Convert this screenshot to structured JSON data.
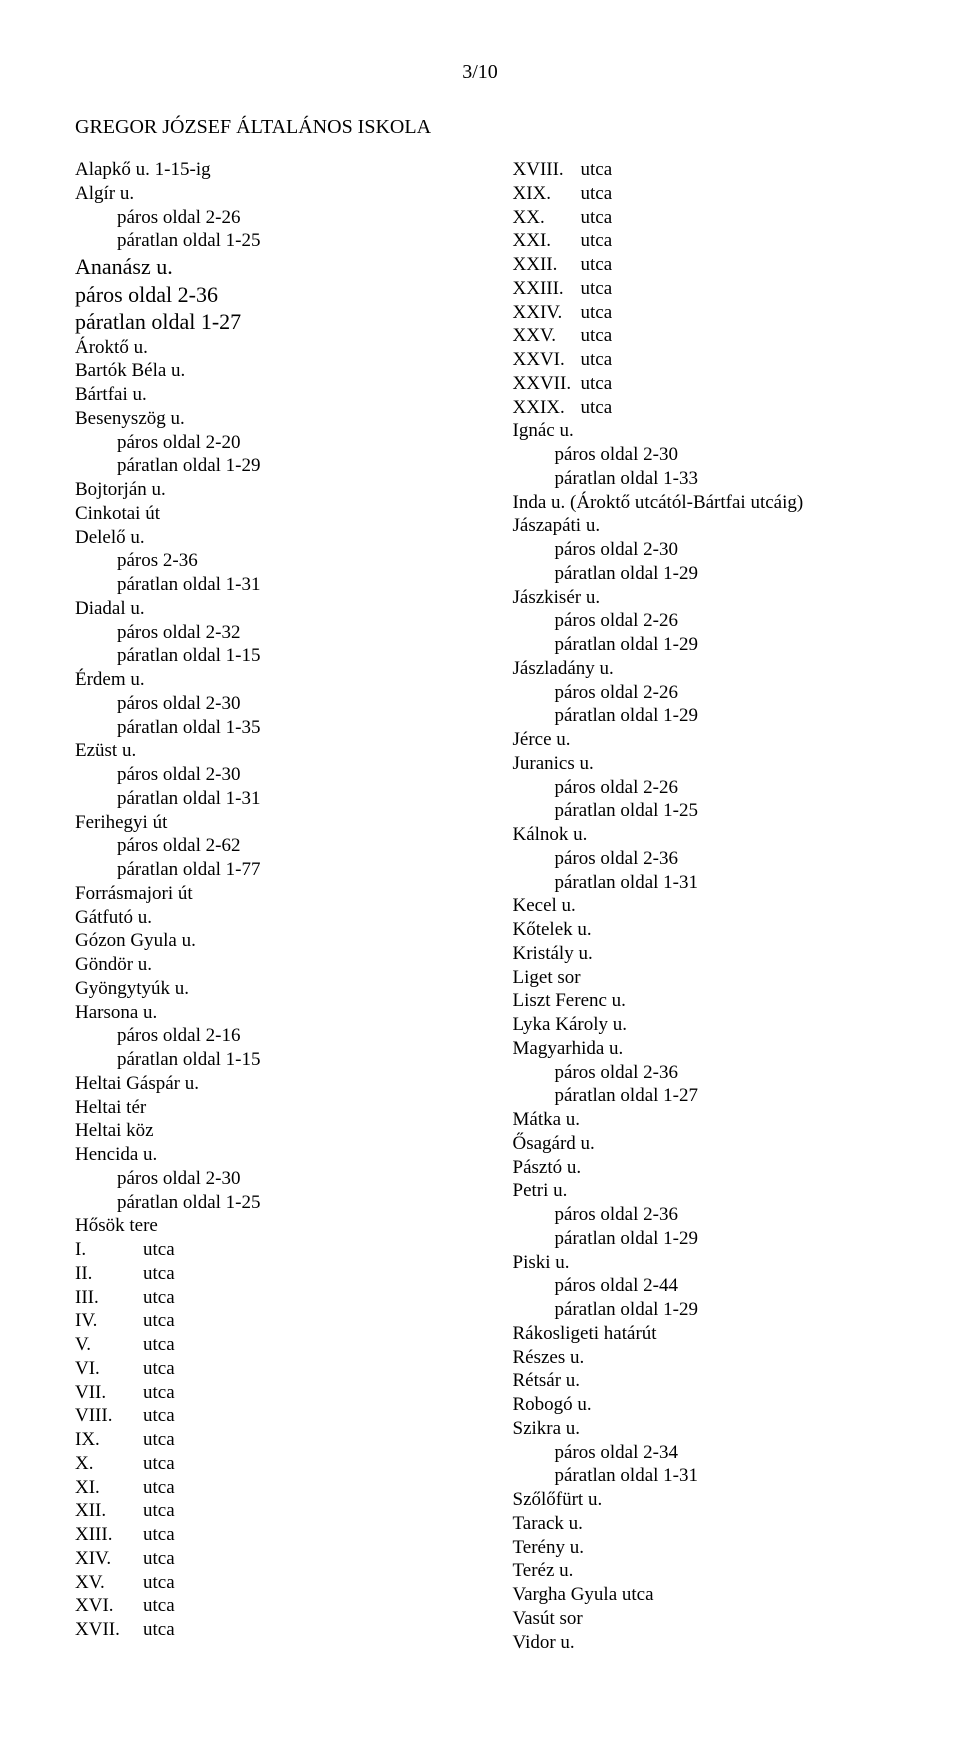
{
  "page_number": "3/10",
  "title": "GREGOR JÓZSEF ÁLTALÁNOS ISKOLA",
  "left_column": [
    {
      "type": "name",
      "text": "Alapkő u. 1-15-ig"
    },
    {
      "type": "name",
      "text": "Algír u."
    },
    {
      "type": "sub",
      "text": "páros oldal 2-26"
    },
    {
      "type": "sub",
      "text": "páratlan oldal 1-25"
    },
    {
      "type": "name",
      "text": "Ananász u.",
      "big": true
    },
    {
      "type": "name",
      "text": "páros oldal 2-36",
      "big": true
    },
    {
      "type": "name",
      "text": "páratlan oldal 1-27",
      "big": true
    },
    {
      "type": "name",
      "text": "Ároktő u."
    },
    {
      "type": "name",
      "text": "Bartók Béla u."
    },
    {
      "type": "name",
      "text": "Bártfai u."
    },
    {
      "type": "name",
      "text": "Besenyszög u."
    },
    {
      "type": "sub",
      "text": "páros oldal 2-20"
    },
    {
      "type": "sub",
      "text": "páratlan oldal 1-29"
    },
    {
      "type": "name",
      "text": "Bojtorján u."
    },
    {
      "type": "name",
      "text": "Cinkotai út"
    },
    {
      "type": "name",
      "text": "Delelő u."
    },
    {
      "type": "sub",
      "text": "páros 2-36"
    },
    {
      "type": "sub",
      "text": "páratlan oldal 1-31"
    },
    {
      "type": "name",
      "text": "Diadal u."
    },
    {
      "type": "sub",
      "text": "páros oldal 2-32"
    },
    {
      "type": "sub",
      "text": "páratlan oldal 1-15"
    },
    {
      "type": "name",
      "text": "Érdem u."
    },
    {
      "type": "sub",
      "text": "páros oldal 2-30"
    },
    {
      "type": "sub",
      "text": "páratlan oldal 1-35"
    },
    {
      "type": "name",
      "text": "Ezüst u."
    },
    {
      "type": "sub",
      "text": "páros oldal 2-30"
    },
    {
      "type": "sub",
      "text": "páratlan oldal 1-31"
    },
    {
      "type": "name",
      "text": "Ferihegyi út"
    },
    {
      "type": "sub",
      "text": "páros oldal 2-62"
    },
    {
      "type": "sub",
      "text": "páratlan oldal 1-77"
    },
    {
      "type": "name",
      "text": "Forrásmajori út"
    },
    {
      "type": "name",
      "text": "Gátfutó u."
    },
    {
      "type": "name",
      "text": "Gózon Gyula u."
    },
    {
      "type": "name",
      "text": "Göndör u."
    },
    {
      "type": "name",
      "text": "Gyöngytyúk u."
    },
    {
      "type": "name",
      "text": "Harsona u."
    },
    {
      "type": "sub",
      "text": "páros oldal 2-16"
    },
    {
      "type": "sub",
      "text": "páratlan oldal 1-15"
    },
    {
      "type": "name",
      "text": "Heltai Gáspár u."
    },
    {
      "type": "name",
      "text": "Heltai tér"
    },
    {
      "type": "name",
      "text": "Heltai köz"
    },
    {
      "type": "name",
      "text": "Hencida u."
    },
    {
      "type": "sub",
      "text": "páros oldal 2-30"
    },
    {
      "type": "sub",
      "text": "páratlan oldal 1-25"
    },
    {
      "type": "name",
      "text": "Hősök tere"
    },
    {
      "type": "roman",
      "num": "I.",
      "text": "utca"
    },
    {
      "type": "roman",
      "num": "II.",
      "text": "utca"
    },
    {
      "type": "roman",
      "num": "III.",
      "text": "utca"
    },
    {
      "type": "roman",
      "num": "IV.",
      "text": "utca"
    },
    {
      "type": "roman",
      "num": "V.",
      "text": "utca"
    },
    {
      "type": "roman",
      "num": "VI.",
      "text": "utca"
    },
    {
      "type": "roman",
      "num": "VII.",
      "text": "utca"
    },
    {
      "type": "roman",
      "num": "VIII.",
      "text": "utca"
    },
    {
      "type": "roman",
      "num": "IX.",
      "text": "utca"
    },
    {
      "type": "roman",
      "num": "X.",
      "text": "utca"
    },
    {
      "type": "roman",
      "num": "XI.",
      "text": "utca"
    },
    {
      "type": "roman",
      "num": "XII.",
      "text": "utca"
    },
    {
      "type": "roman",
      "num": "XIII.",
      "text": "utca"
    },
    {
      "type": "roman",
      "num": "XIV.",
      "text": "utca"
    },
    {
      "type": "roman",
      "num": "XV.",
      "text": "utca"
    },
    {
      "type": "roman",
      "num": "XVI.",
      "text": "utca"
    },
    {
      "type": "roman",
      "num": "XVII.",
      "text": "utca"
    }
  ],
  "right_column": [
    {
      "type": "roman",
      "num": "XVIII.",
      "text": "utca"
    },
    {
      "type": "roman",
      "num": "XIX.",
      "text": "utca"
    },
    {
      "type": "roman",
      "num": "XX.",
      "text": "utca"
    },
    {
      "type": "roman",
      "num": "XXI.",
      "text": " utca"
    },
    {
      "type": "roman",
      "num": "XXII.",
      "text": "utca"
    },
    {
      "type": "roman",
      "num": "XXIII.",
      "text": "utca"
    },
    {
      "type": "roman",
      "num": "XXIV.",
      "text": "utca"
    },
    {
      "type": "roman",
      "num": "XXV.",
      "text": "utca"
    },
    {
      "type": "roman",
      "num": "XXVI.",
      "text": "utca"
    },
    {
      "type": "roman",
      "num": "XXVII.",
      "text": "utca"
    },
    {
      "type": "roman",
      "num": "XXIX.",
      "text": "utca"
    },
    {
      "type": "name",
      "text": "Ignác u."
    },
    {
      "type": "sub",
      "text": "páros oldal 2-30"
    },
    {
      "type": "sub",
      "text": "páratlan oldal 1-33"
    },
    {
      "type": "name",
      "text": "Inda u. (Ároktő utcától-Bártfai utcáig)"
    },
    {
      "type": "name",
      "text": "Jászapáti u."
    },
    {
      "type": "sub",
      "text": "páros oldal 2-30"
    },
    {
      "type": "sub",
      "text": "páratlan oldal 1-29"
    },
    {
      "type": "name",
      "text": "Jászkisér u."
    },
    {
      "type": "sub",
      "text": "páros oldal 2-26"
    },
    {
      "type": "sub",
      "text": "páratlan oldal 1-29"
    },
    {
      "type": "name",
      "text": "Jászladány u."
    },
    {
      "type": "sub",
      "text": "páros oldal 2-26"
    },
    {
      "type": "sub",
      "text": "páratlan oldal 1-29"
    },
    {
      "type": "name",
      "text": "Jérce u."
    },
    {
      "type": "name",
      "text": "Juranics u."
    },
    {
      "type": "sub",
      "text": "páros oldal 2-26"
    },
    {
      "type": "sub",
      "text": "páratlan oldal 1-25"
    },
    {
      "type": "name",
      "text": "Kálnok u."
    },
    {
      "type": "sub",
      "text": "páros oldal 2-36"
    },
    {
      "type": "sub",
      "text": "páratlan oldal 1-31"
    },
    {
      "type": "name",
      "text": "Kecel u."
    },
    {
      "type": "name",
      "text": "Kőtelek u."
    },
    {
      "type": "name",
      "text": "Kristály u."
    },
    {
      "type": "name",
      "text": "Liget sor"
    },
    {
      "type": "name",
      "text": "Liszt Ferenc u."
    },
    {
      "type": "name",
      "text": "Lyka Károly u."
    },
    {
      "type": "name",
      "text": "Magyarhida u."
    },
    {
      "type": "sub",
      "text": "páros oldal 2-36"
    },
    {
      "type": "sub",
      "text": "páratlan oldal 1-27"
    },
    {
      "type": "name",
      "text": "Mátka u."
    },
    {
      "type": "name",
      "text": "Ősagárd u."
    },
    {
      "type": "name",
      "text": "Pásztó u."
    },
    {
      "type": "name",
      "text": "Petri u."
    },
    {
      "type": "sub",
      "text": "páros oldal 2-36"
    },
    {
      "type": "sub",
      "text": "páratlan oldal 1-29"
    },
    {
      "type": "name",
      "text": "Piski u."
    },
    {
      "type": "sub",
      "text": "páros oldal 2-44"
    },
    {
      "type": "sub",
      "text": "páratlan oldal 1-29"
    },
    {
      "type": "name",
      "text": "Rákosligeti határút"
    },
    {
      "type": "name",
      "text": "Részes u."
    },
    {
      "type": "name",
      "text": "Rétsár u."
    },
    {
      "type": "name",
      "text": "Robogó u."
    },
    {
      "type": "name",
      "text": "Szikra u."
    },
    {
      "type": "sub",
      "text": "páros oldal 2-34"
    },
    {
      "type": "sub",
      "text": "páratlan oldal 1-31"
    },
    {
      "type": "name",
      "text": "Szőlőfürt u."
    },
    {
      "type": "name",
      "text": "Tarack u."
    },
    {
      "type": "name",
      "text": "Terény u."
    },
    {
      "type": "name",
      "text": "Teréz u."
    },
    {
      "type": "name",
      "text": "Vargha Gyula utca"
    },
    {
      "type": "name",
      "text": "Vasút sor"
    },
    {
      "type": "name",
      "text": "Vidor u."
    }
  ]
}
